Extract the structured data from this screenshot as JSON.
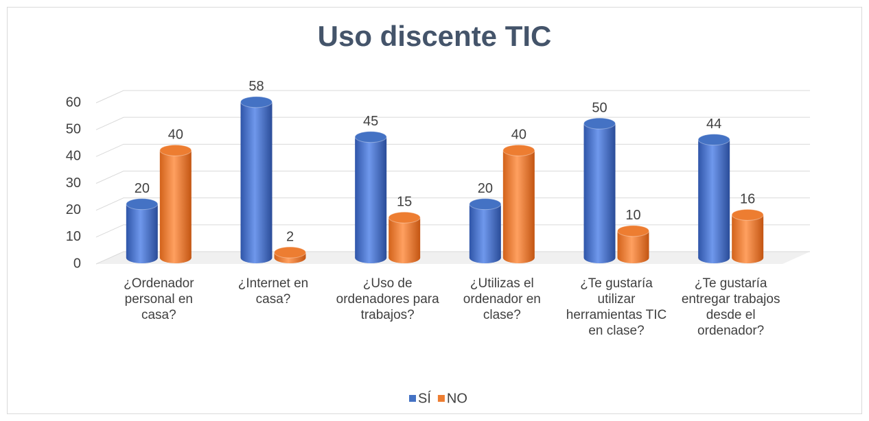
{
  "chart_data": {
    "type": "bar3d",
    "title": "Uso discente TIC",
    "categories": [
      "¿Ordenador personal en casa?",
      "¿Internet en casa?",
      "¿Uso de ordenadores para trabajos?",
      "¿Utilizas el ordenador en clase?",
      "¿Te gustaría utilizar herramientas TIC en clase?",
      "¿Te gustaría entregar trabajos desde el ordenador?"
    ],
    "series": [
      {
        "name": "SÍ",
        "color": "#4472c4",
        "values": [
          20,
          58,
          45,
          20,
          50,
          44
        ]
      },
      {
        "name": "NO",
        "color": "#ed7d31",
        "values": [
          40,
          2,
          15,
          40,
          10,
          16
        ]
      }
    ],
    "ylim": [
      0,
      60
    ],
    "yticks": [
      0,
      10,
      20,
      30,
      40,
      50,
      60
    ],
    "grid": true,
    "legend": "bottom"
  }
}
